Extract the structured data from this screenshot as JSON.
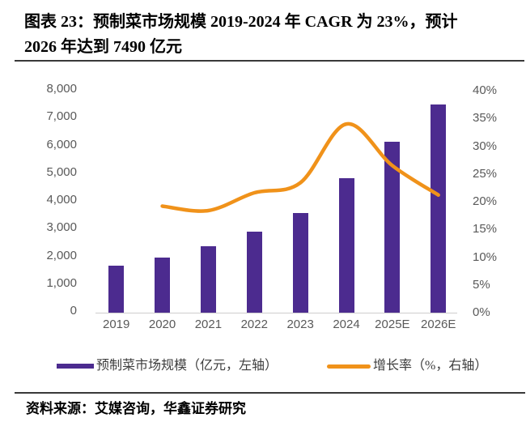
{
  "header": {
    "title_line1": "图表 23：预制菜市场规模 2019-2024 年 CAGR 为 23%，预计",
    "title_line2": "2026 年达到 7490 亿元"
  },
  "chart_data": {
    "type": "combo",
    "title": "图表 23：预制菜市场规模 2019-2024 年 CAGR 为 23%，预计 2026 年达到 7490 亿元",
    "categories": [
      "2019",
      "2020",
      "2021",
      "2022",
      "2023",
      "2024",
      "2025E",
      "2026E"
    ],
    "series": [
      {
        "name": "预制菜市场规模（亿元，左轴）",
        "type": "bar",
        "axis": "left",
        "color": "#4C2B8F",
        "values": [
          1700,
          2000,
          2400,
          2930,
          3600,
          4850,
          6150,
          7490
        ]
      },
      {
        "name": "增长率（%，右轴）",
        "type": "line",
        "axis": "right",
        "color": "#F0921A",
        "values": [
          null,
          19.2,
          18.4,
          21.6,
          23.4,
          34.0,
          26.5,
          21.2
        ]
      }
    ],
    "left_axis": {
      "min": 0,
      "max": 8000,
      "step": 1000,
      "tick_labels": [
        "8,000",
        "7,000",
        "6,000",
        "5,000",
        "4,000",
        "3,000",
        "2,000",
        "1,000",
        "0"
      ]
    },
    "right_axis": {
      "min": 0,
      "max": 40,
      "step": 5,
      "tick_labels": [
        "40%",
        "35%",
        "30%",
        "25%",
        "20%",
        "15%",
        "10%",
        "5%",
        "0%"
      ]
    },
    "grid": "off",
    "legend_position": "bottom"
  },
  "footer": {
    "source": "资料来源：艾媒咨询，华鑫证券研究"
  }
}
